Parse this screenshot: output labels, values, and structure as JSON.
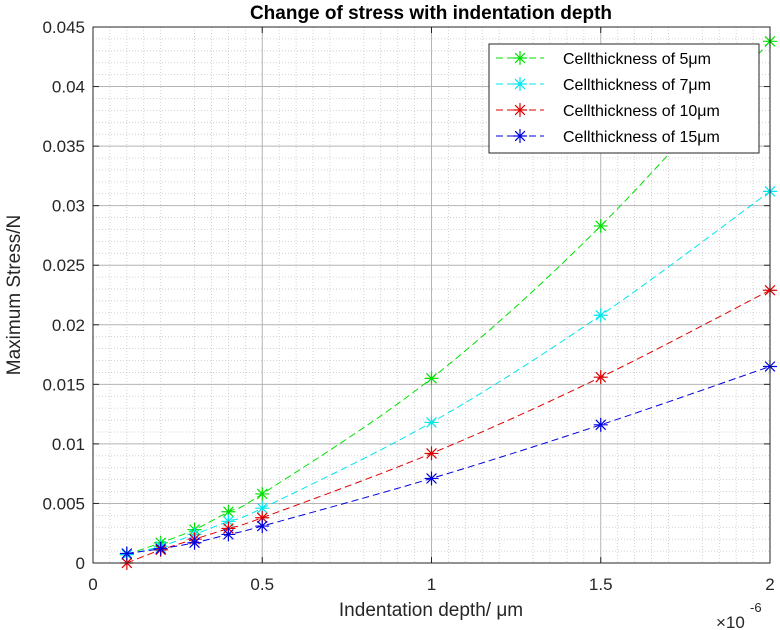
{
  "chart_data": {
    "type": "line",
    "title": "Change of stress with indentation depth",
    "xlabel": "Indentation depth/ μm",
    "ylabel": "Maximum Stress/N",
    "x_exponent_label": "×10",
    "x_exponent_power": "-6",
    "x_scale": 1e-06,
    "xlim": [
      0,
      2
    ],
    "ylim": [
      0,
      0.045
    ],
    "x_ticks": [
      0,
      0.5,
      1,
      1.5,
      2
    ],
    "x_tick_labels": [
      "0",
      "0.5",
      "1",
      "1.5",
      "2"
    ],
    "y_ticks": [
      0,
      0.005,
      0.01,
      0.015,
      0.02,
      0.025,
      0.03,
      0.035,
      0.04,
      0.045
    ],
    "y_tick_labels": [
      "0",
      "0.005",
      "0.01",
      "0.015",
      "0.02",
      "0.025",
      "0.03",
      "0.035",
      "0.04",
      "0.045"
    ],
    "grid": true,
    "minor_grid": true,
    "legend_position": "top-right",
    "marker": "asterisk",
    "line_style": "dashed",
    "x": [
      0.1,
      0.2,
      0.3,
      0.4,
      0.5,
      1.0,
      1.5,
      2.0
    ],
    "series": [
      {
        "name": "Cellthickness of 5μm",
        "color": "#00e000",
        "values": [
          0.0007,
          0.0017,
          0.0028,
          0.0043,
          0.0058,
          0.0155,
          0.0283,
          0.0438
        ]
      },
      {
        "name": "Cellthickness of 7μm",
        "color": "#00e5ee",
        "values": [
          0.0007,
          0.0014,
          0.0024,
          0.0035,
          0.0046,
          0.0118,
          0.0208,
          0.0312
        ]
      },
      {
        "name": "Cellthickness of 10μm",
        "color": "#e00000",
        "values": [
          0.0,
          0.0011,
          0.002,
          0.0029,
          0.0038,
          0.0092,
          0.0156,
          0.0229
        ]
      },
      {
        "name": "Cellthickness of 15μm",
        "color": "#0000e0",
        "values": [
          0.0008,
          0.0012,
          0.0017,
          0.0024,
          0.0031,
          0.0071,
          0.0116,
          0.0165
        ]
      }
    ]
  }
}
